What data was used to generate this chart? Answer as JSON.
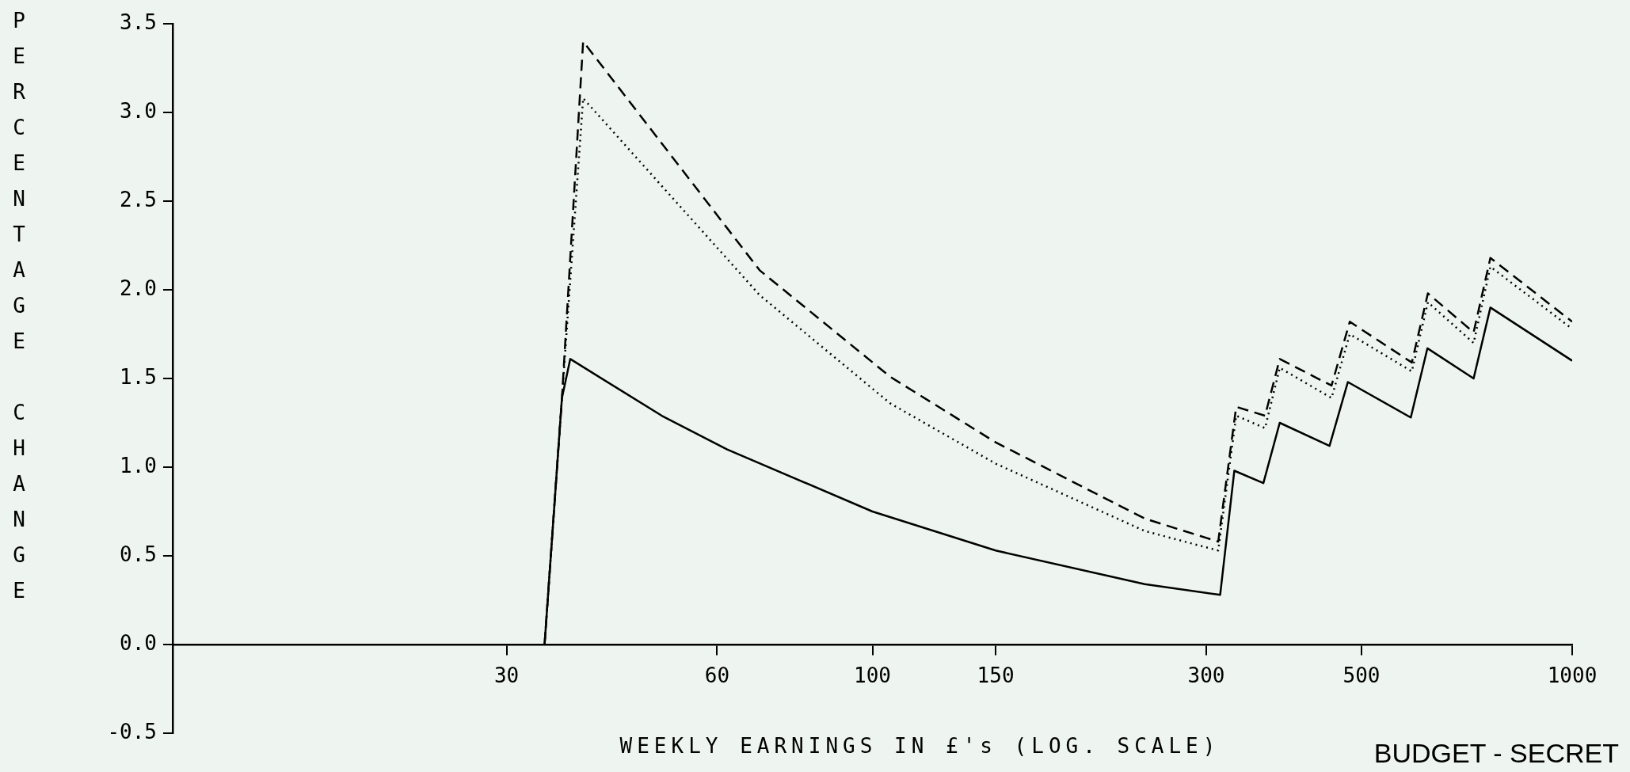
{
  "chart_data": {
    "type": "line",
    "xlabel": "WEEKLY EARNINGS IN £'s (LOG. SCALE)",
    "ylabel": "PERCENTAGE CHANGE",
    "annotations": [
      "BUDGET - SECRET"
    ],
    "log": "x",
    "xlim": [
      10,
      1000
    ],
    "xticks": [
      30,
      60,
      100,
      150,
      300,
      500,
      1000
    ],
    "ylim": [
      -0.5,
      3.5
    ],
    "yticks": [
      {
        "value": -0.5,
        "label": "-0.5"
      },
      {
        "value": 0,
        "label": "0.0"
      },
      0.5,
      {
        "value": 1,
        "label": "1.0"
      },
      1.5,
      {
        "value": 2,
        "label": "2.0"
      },
      2.5,
      {
        "value": 3,
        "label": "3.0"
      },
      3.5
    ],
    "grid": false,
    "legend": false,
    "series": [
      {
        "color": "#000000",
        "line_style": "solid",
        "x": [
          34,
          36,
          37,
          50,
          62,
          100,
          150,
          245,
          314,
          329,
          362,
          382,
          450,
          478,
          588,
          621,
          723,
          764,
          1000
        ],
        "values": [
          0,
          1.39,
          1.61,
          1.29,
          1.1,
          0.75,
          0.53,
          0.34,
          0.28,
          0.98,
          0.91,
          1.25,
          1.12,
          1.48,
          1.28,
          1.67,
          1.5,
          1.9,
          1.6
        ]
      },
      {
        "color": "#000000",
        "line_style": "dashed",
        "x": [
          34,
          36,
          38.6,
          69,
          106,
          150,
          245,
          312,
          331,
          364,
          382,
          453,
          481,
          590,
          622,
          723,
          764,
          1000
        ],
        "values": [
          0,
          1.39,
          3.4,
          2.11,
          1.51,
          1.14,
          0.71,
          0.58,
          1.34,
          1.29,
          1.61,
          1.46,
          1.82,
          1.59,
          1.98,
          1.76,
          2.18,
          1.82
        ]
      },
      {
        "color": "#000000",
        "line_style": "dotted",
        "x": [
          34,
          36,
          38.6,
          69,
          106,
          150,
          245,
          312,
          331,
          364,
          382,
          453,
          481,
          590,
          622,
          723,
          764,
          1000
        ],
        "values": [
          0,
          1.39,
          3.08,
          1.97,
          1.36,
          1.02,
          0.64,
          0.53,
          1.29,
          1.22,
          1.56,
          1.39,
          1.75,
          1.54,
          1.93,
          1.7,
          2.13,
          1.78
        ]
      }
    ]
  }
}
